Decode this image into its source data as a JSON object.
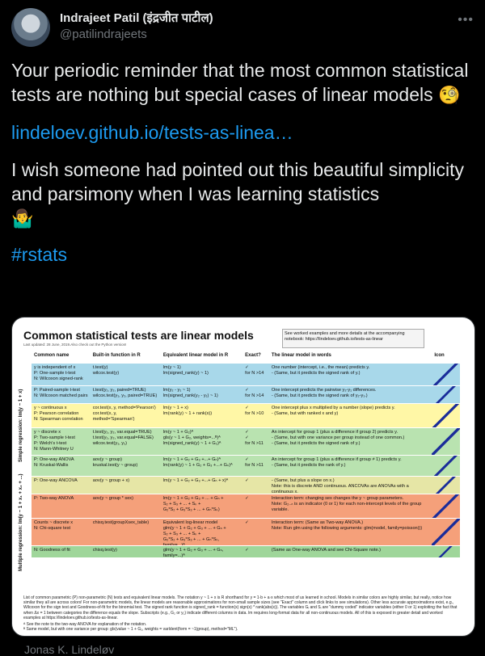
{
  "author": {
    "name": "Indrajeet Patil (इंद्रजीत पाटील)",
    "handle": "@patilindrajeets",
    "more_icon": "more-icon"
  },
  "tweet": {
    "line1": "Your periodic reminder that the most common statistical tests are nothing but special cases of linear models",
    "emoji1": "🧐",
    "link": "lindeloev.github.io/tests-as-linea…",
    "line2": "I wish someone had pointed out this beautiful simplicity and parsimony when I was learning statistics",
    "emoji2": "🤷‍♂️",
    "hashtag": "#rstats"
  },
  "card": {
    "title": "Common statistical tests are linear models",
    "subtitle": "Last updated: 28 June, 2019.Also check out the Python version!",
    "box_text": "See worked examples and more details at the accompanying notebook: https://lindeloev.github.io/tests-as-linear",
    "headers": [
      "Common name",
      "Built-in function in R",
      "Equivalent linear model in R",
      "Exact?",
      "The linear model in words",
      "Icon"
    ],
    "vertical_labels": [
      "Simple regression: lm(y ~ 1 + x)",
      "Multiple regression: lm(y ~ 1 + x₁ + x₂ + ...)"
    ],
    "rows": [
      {
        "name": "y is independent of x\nP: One-sample t-test\nN: Wilcoxon signed-rank",
        "r": "t.test(y)\nwilcox.test(y)",
        "lm": "lm(y ~ 1)\nlm(signed_rank(y) ~ 1)",
        "exact": "✓\nfor N >14",
        "words": "One number (intercept, i.e., the mean) predicts y.\n- (Same, but it predicts the signed rank of y.)",
        "color": "#a8d8ea"
      },
      {
        "name": "P: Paired-sample t-test\nN: Wilcoxon matched pairs",
        "r": "t.test(y₁, y₂, paired=TRUE)\nwilcox.test(y₁, y₂, paired=TRUE)",
        "lm": "lm(y₂ - y₁ ~ 1)\nlm(signed_rank(y₂ - y₁) ~ 1)",
        "exact": "✓\nfor N >14",
        "words": "One intercept predicts the pairwise y₂-y₁ differences.\n- (Same, but it predicts the signed rank of y₂-y₁.)",
        "color": "#a8d8ea"
      },
      {
        "name": "y ~ continuous x\nP: Pearson correlation\nN: Spearman correlation",
        "r": "cor.test(x, y, method='Pearson')\ncor.test(x, y, method='Spearman')",
        "lm": "lm(y ~ 1 + x)\nlm(rank(y) ~ 1 + rank(x))",
        "exact": "✓\nfor N >10",
        "words": "One intercept plus x multiplied by a number (slope) predicts y.\n- (Same, but with ranked x and y)",
        "color": "#fff7a6"
      },
      {
        "name": "y ~ discrete x\nP: Two-sample t-test\nP: Welch's t-test\nN: Mann-Whitney U",
        "r": "t.test(y₁, y₂, var.equal=TRUE)\nt.test(y₁, y₂, var.equal=FALSE)\nwilcox.test(y₁, y₂)",
        "lm": "lm(y ~ 1 + G₂)ᴬ\ngls(y ~ 1 + G₂, weights=...ᴮ)ᴬ\nlm(signed_rank(y) ~ 1 + G₂)ᴬ",
        "exact": "✓\n✓\nfor N >11",
        "words": "An intercept for group 1 (plus a difference if group 2) predicts y.\n- (Same, but with one variance per group instead of one common.)\n- (Same, but it predicts the signed rank of y.)",
        "color": "#b9e3b0"
      },
      {
        "name": "P: One-way ANOVA\nN: Kruskal-Wallis",
        "r": "aov(y ~ group)\nkruskal.test(y ~ group)",
        "lm": "lm(y ~ 1 + G₂ + G₃ +...+ Gₙ)ᴬ\nlm(rank(y) ~ 1 + G₂ + G₃ +...+ Gₙ)ᴬ",
        "exact": "✓\nfor N >11",
        "words": "An intercept for group 1 (plus a difference if group ≠ 1) predicts y.\n- (Same, but it predicts the rank of y.)",
        "color": "#b9e3b0"
      },
      {
        "name": "P: One-way ANCOVA",
        "r": "aov(y ~ group + x)",
        "lm": "lm(y ~ 1 + G₂ + G₃ +...+ Gₙ + x)ᴬ",
        "exact": "✓",
        "words": "- (Same, but plus a slope on x.)\nNote: this is discrete AND continuous. ANCOVAs are ANOVAs with a continuous x.",
        "color": "#e6e6a6"
      },
      {
        "name": "P: Two-way ANOVA",
        "r": "aov(y ~ group * sex)",
        "lm": "lm(y ~ 1 + G₂ + G₃ + ... + Gₙ +\n S₂ + S₃ + ... + Sₖ +\n G₂*S₂ + G₃*S₃ + ... + Gₙ*Sₖ)",
        "exact": "✓",
        "words": "Interaction term: changing sex changes the y ~ group parameters.\nNote: G₂₋ₙ is an indicator (0 or 1) for each non-intercept levels of the group variable.",
        "color": "#f5a07a"
      },
      {
        "name": "Counts ~ discrete x\nN: Chi-square test",
        "r": "chisq.test(groupXsex_table)",
        "lm": "Equivalent log-linear model\nglm(y ~ 1 + G₂ + G₃ + ... + Gₙ +\n S₂ + S₃ + ... + Sₖ +\n G₂*S₂ + G₃*S₃ + ... + Gₙ*Sₖ, family=...)ᴬ",
        "exact": "✓",
        "words": "Interaction term: (Same as Two-way ANOVA.)\nNote: Run glm using the following arguments: glm(model, family=poisson())",
        "color": "#f5a07a"
      },
      {
        "name": "N: Goodness of fit",
        "r": "chisq.test(y)",
        "lm": "glm(y ~ 1 + G₂ + G₃ + ... + Gₙ, family=...)ᴬ",
        "exact": "✓",
        "words": "(Same as One-way ANOVA and see Chi-Square note.)",
        "color": "#9fd69a"
      }
    ],
    "footnote": "List of common parametric (P) non-parametric (N) tests and equivalent linear models. The notation y ~ 1 + x is R shorthand for y = 1·b + a·x which most of us learned in school. Models in similar colors are highly similar, but really, notice how similar they all are across colors! For non-parametric models, the linear models are reasonable approximations for non-small sample sizes (see \"Exact\" column and click links to see simulations). Other less accurate approximations exist, e.g., Wilcoxon for the sign test and Goodness-of-fit for the binomial test. The signed rank function is signed_rank = function(x) sign(x) * rank(abs(x)). The variables Gᵢ and Sᵢ are \"dummy coded\" indicator variables (either 0 or 1) exploiting the fact that when Δx = 1 between categories the difference equals the slope. Subscripts (e.g., G₂ or y₁) indicate different columns in data. lm requires long-format data for all non-continuous models. All of this is exposed in greater detail and worked examples at https://lindeloev.github.io/tests-as-linear.",
    "footnote_a": "ᴬ See the note to the two-way ANOVA for explanation of the notation.",
    "footnote_b": "ᴮ Same model, but with one variance per group: gls(value ~ 1 + G₂, weights = varIdent(form = ~1|group), method=\"ML\").",
    "credit": "Jonas Kristoffer Lindeløv\nhttps://lindeloev.net"
  },
  "bottom_text": "Jonas K. Lindeløv"
}
